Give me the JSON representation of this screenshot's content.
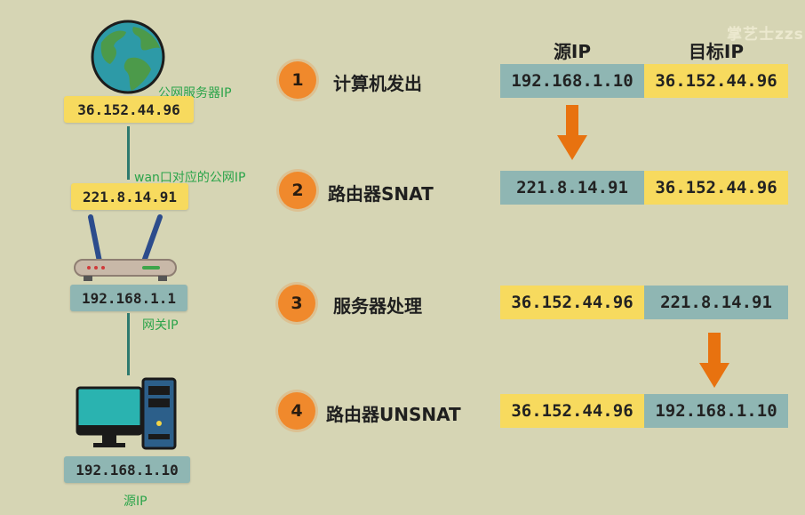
{
  "watermark": "掌艺士zzs",
  "topology": {
    "server_ip": "36.152.44.96",
    "server_note": "公网服务器IP",
    "router_wan_ip": "221.8.14.91",
    "router_wan_note": "wan口对应的公网IP",
    "router_lan_ip": "192.168.1.1",
    "router_lan_note": "网关IP",
    "client_ip": "192.168.1.10",
    "client_note": "源IP"
  },
  "columns": {
    "source": "源IP",
    "dest": "目标IP"
  },
  "steps": [
    {
      "num": "1",
      "label": "计算机发出",
      "source": "192.168.1.10",
      "dest": "36.152.44.96"
    },
    {
      "num": "2",
      "label": "路由器SNAT",
      "source": "221.8.14.91",
      "dest": "36.152.44.96"
    },
    {
      "num": "3",
      "label": "服务器处理",
      "source": "36.152.44.96",
      "dest": "221.8.14.91"
    },
    {
      "num": "4",
      "label": "路由器UNSNAT",
      "source": "36.152.44.96",
      "dest": "192.168.1.10"
    }
  ],
  "colors": {
    "background": "#d6d5b4",
    "yellow": "#f7da5e",
    "teal": "#8fb6b3",
    "orange": "#f0892c",
    "arrow": "#e8720f",
    "note_green": "#2ba44a"
  },
  "icons": [
    "globe-icon",
    "router-icon",
    "computer-icon",
    "down-arrow-icon"
  ]
}
